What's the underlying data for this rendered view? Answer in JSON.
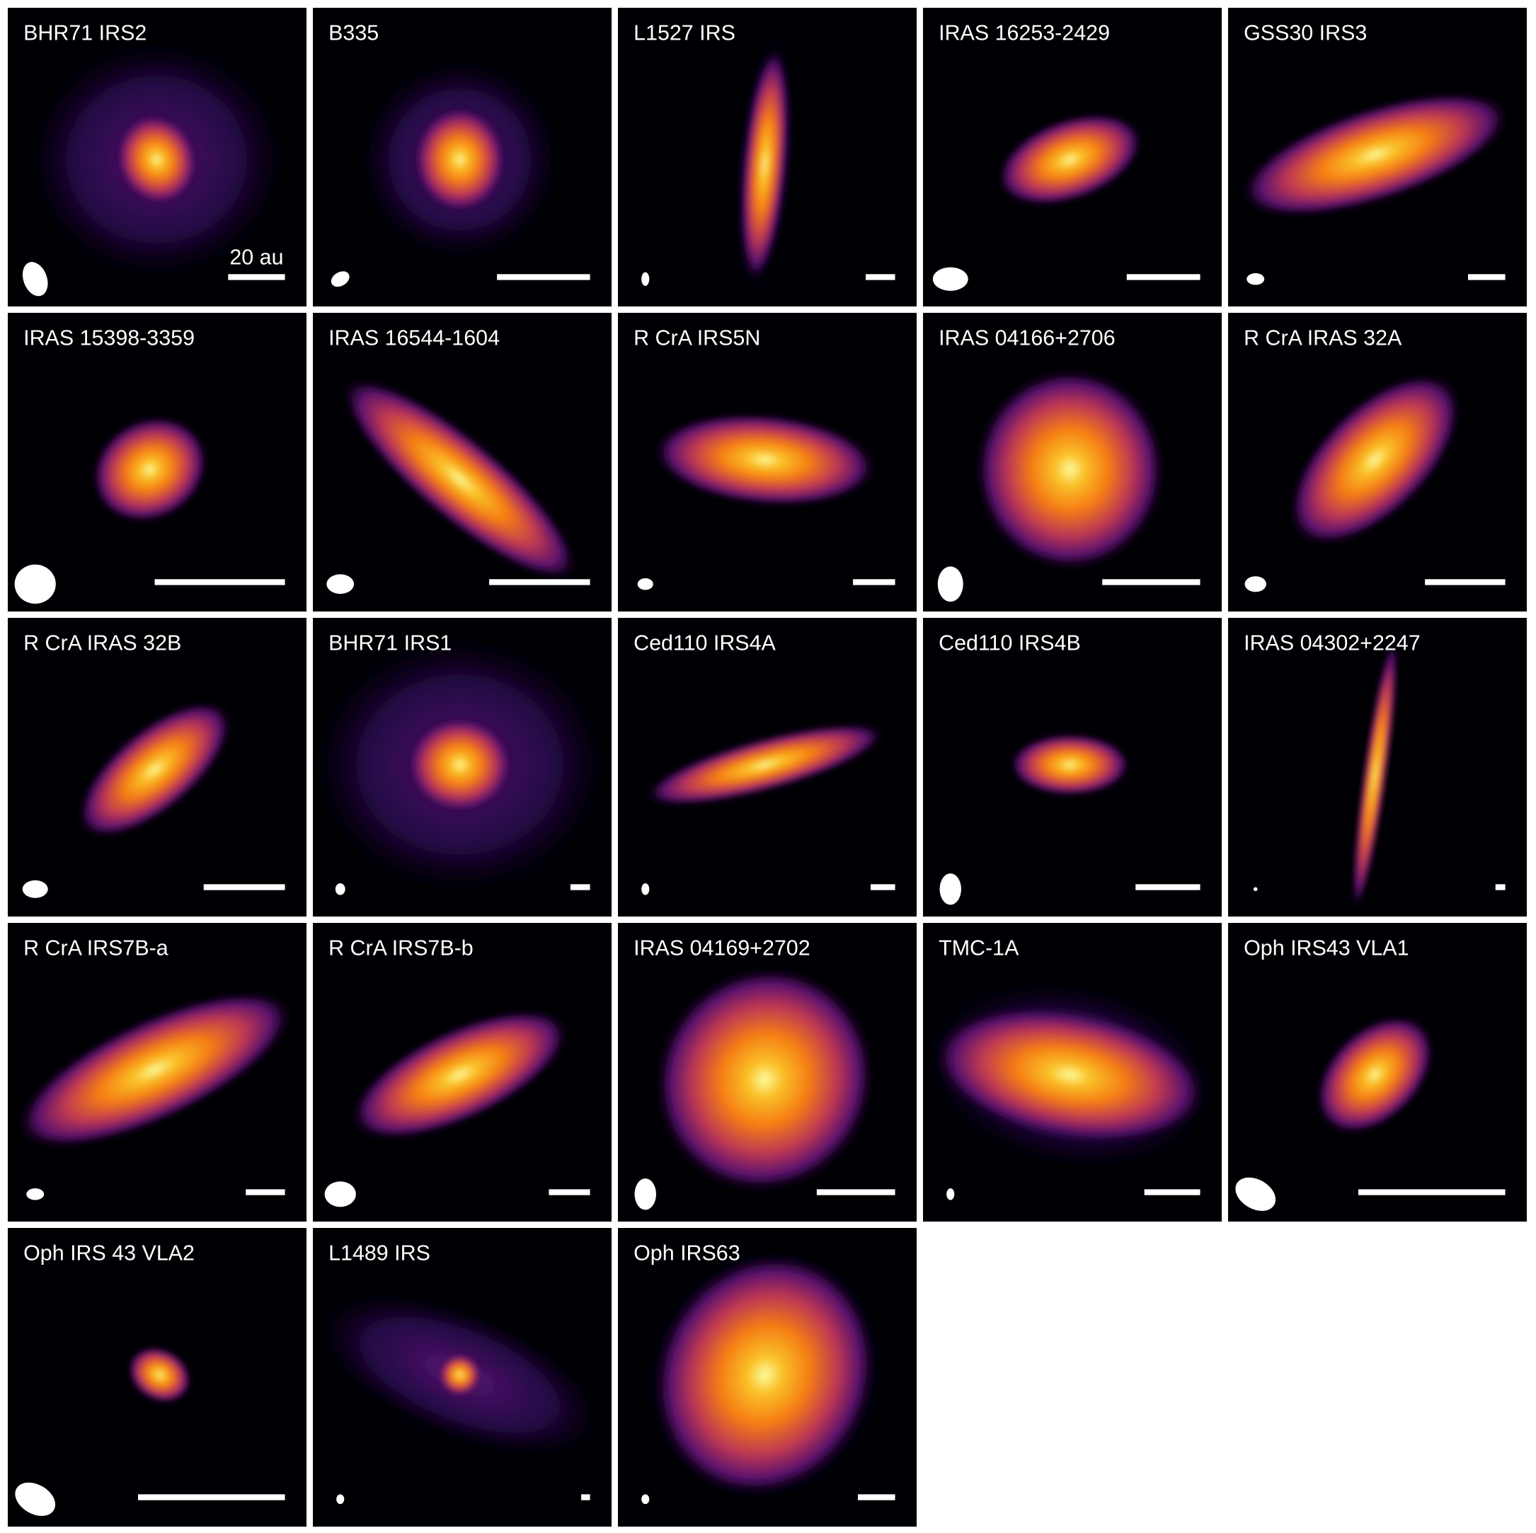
{
  "panels": [
    {
      "label": "BHR71 IRS2",
      "scale_label": "20 au"
    },
    {
      "label": "B335"
    },
    {
      "label": "L1527 IRS"
    },
    {
      "label": "IRAS 16253-2429"
    },
    {
      "label": "GSS30 IRS3"
    },
    {
      "label": "IRAS 15398-3359"
    },
    {
      "label": "IRAS 16544-1604"
    },
    {
      "label": "R CrA IRS5N"
    },
    {
      "label": "IRAS 04166+2706"
    },
    {
      "label": "R CrA IRAS 32A"
    },
    {
      "label": "R CrA IRAS 32B"
    },
    {
      "label": "BHR71 IRS1"
    },
    {
      "label": "Ced110 IRS4A"
    },
    {
      "label": "Ced110 IRS4B"
    },
    {
      "label": "IRAS 04302+2247"
    },
    {
      "label": "R CrA IRS7B-a"
    },
    {
      "label": "R CrA IRS7B-b"
    },
    {
      "label": "IRAS 04169+2702"
    },
    {
      "label": "TMC-1A"
    },
    {
      "label": "Oph IRS43 VLA1"
    },
    {
      "label": "Oph IRS 43 VLA2"
    },
    {
      "label": "L1489 IRS"
    },
    {
      "label": "Oph IRS63"
    }
  ]
}
